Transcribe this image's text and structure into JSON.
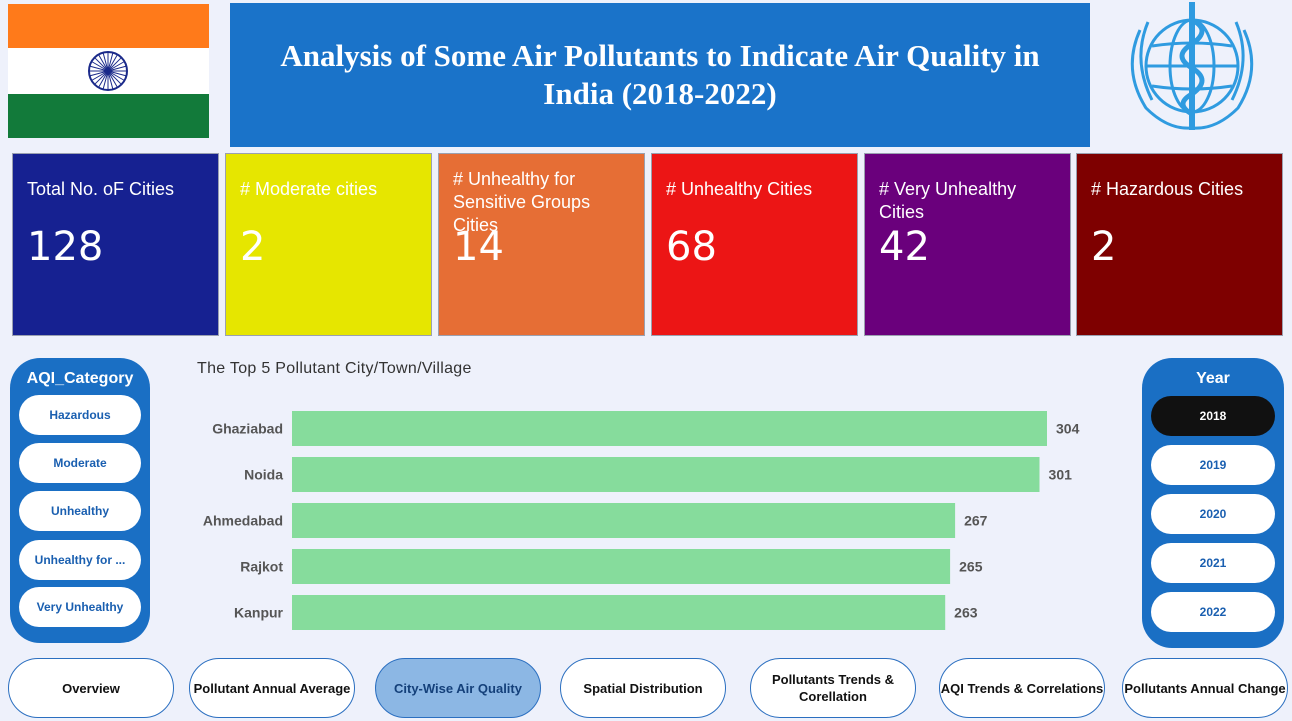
{
  "header": {
    "title": "Analysis of Some Air Pollutants to Indicate Air Quality in India (2018-2022)"
  },
  "colors": {
    "banner": "#1a73c9",
    "bar": "#86dc9c",
    "saffron": "#ff7a1a",
    "green": "#127a3a",
    "chakra": "#1b2a8a",
    "who_blue": "#2f9be0"
  },
  "kpis": [
    {
      "label": "Total No. oF Cities",
      "value": "128",
      "color": "#162191"
    },
    {
      "label": "# Moderate cities",
      "value": "2",
      "color": "#e6e600"
    },
    {
      "label": "# Unhealthy for Sensitive Groups Cities",
      "value": "14",
      "color": "#e66e35"
    },
    {
      "label": "# Unhealthy Cities",
      "value": "68",
      "color": "#ec1515"
    },
    {
      "label": "# Very Unhealthy Cities",
      "value": "42",
      "color": "#6a007c"
    },
    {
      "label": "# Hazardous Cities",
      "value": "2",
      "color": "#7e0000"
    }
  ],
  "aqi_slicer": {
    "title": "AQI_Category",
    "items": [
      "Hazardous",
      "Moderate",
      "Unhealthy",
      "Unhealthy for ...",
      "Very Unhealthy"
    ]
  },
  "year_slicer": {
    "title": "Year",
    "items": [
      "2018",
      "2019",
      "2020",
      "2021",
      "2022"
    ],
    "selected": "2018"
  },
  "chart_data": {
    "type": "bar",
    "orientation": "horizontal",
    "title": "The Top 5 Pollutant City/Town/Village",
    "categories": [
      "Ghaziabad",
      "Noida",
      "Ahmedabad",
      "Rajkot",
      "Kanpur"
    ],
    "values": [
      304,
      301,
      267,
      265,
      263
    ],
    "xlim": [
      0,
      304
    ],
    "grid": false,
    "data_labels": true
  },
  "nav": [
    {
      "label": "Overview",
      "active": false
    },
    {
      "label": "Pollutant Annual Average",
      "active": false
    },
    {
      "label": "City-Wise Air Quality",
      "active": true
    },
    {
      "label": "Spatial Distribution",
      "active": false
    },
    {
      "label": "Pollutants Trends & Corellation",
      "active": false
    },
    {
      "label": "AQI Trends & Correlations",
      "active": false
    },
    {
      "label": "Pollutants Annual Change",
      "active": false
    }
  ]
}
